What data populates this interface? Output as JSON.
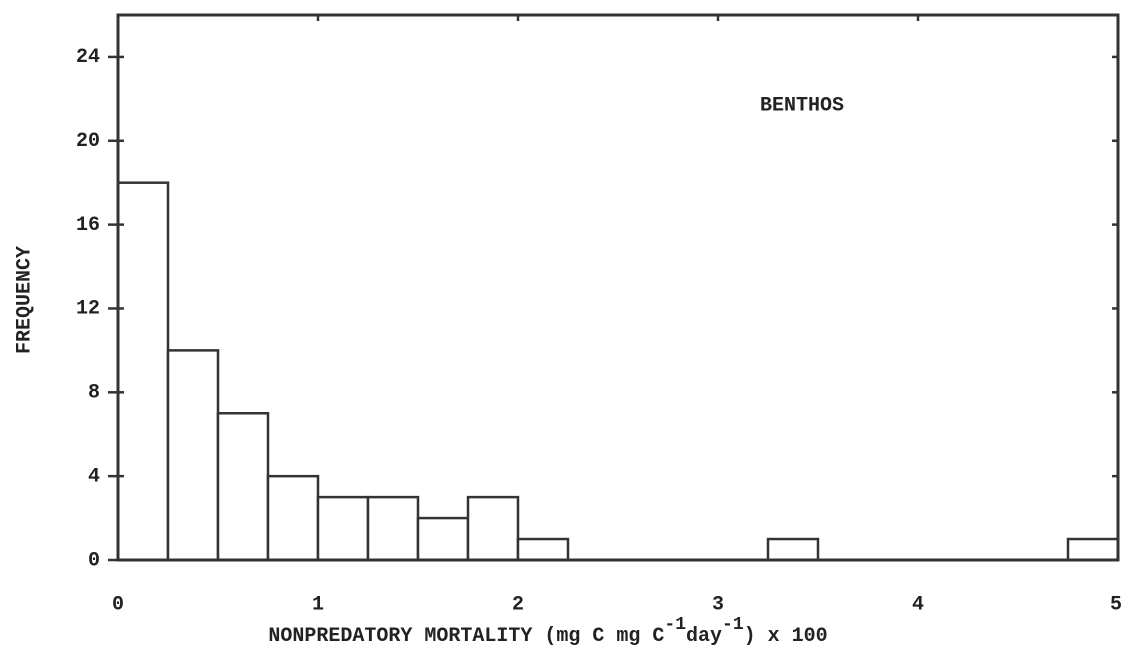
{
  "chart_data": {
    "type": "histogram",
    "annotation": "BENTHOS",
    "ylabel": "FREQUENCY",
    "xlabel": [
      "NONPREDATORY MORTALITY (mg C mg C",
      "-1",
      "day",
      "-1",
      ") x 100"
    ],
    "bins": [
      0,
      0.25,
      0.5,
      0.75,
      1,
      1.25,
      1.5,
      1.75,
      2,
      2.25,
      2.5,
      2.75,
      3,
      3.25,
      3.5,
      3.75,
      4,
      4.25,
      4.5,
      4.75,
      5
    ],
    "counts": [
      18,
      10,
      7,
      4,
      3,
      3,
      2,
      3,
      1,
      0,
      0,
      0,
      0,
      1,
      0,
      0,
      0,
      0,
      0,
      1
    ],
    "color": "#ffffff",
    "xlim": [
      0,
      5
    ],
    "xticks": [
      0,
      1,
      2,
      3,
      4,
      5
    ],
    "ylim": [
      0,
      26
    ],
    "yticks": [
      0,
      4,
      8,
      12,
      16,
      20,
      24
    ]
  }
}
